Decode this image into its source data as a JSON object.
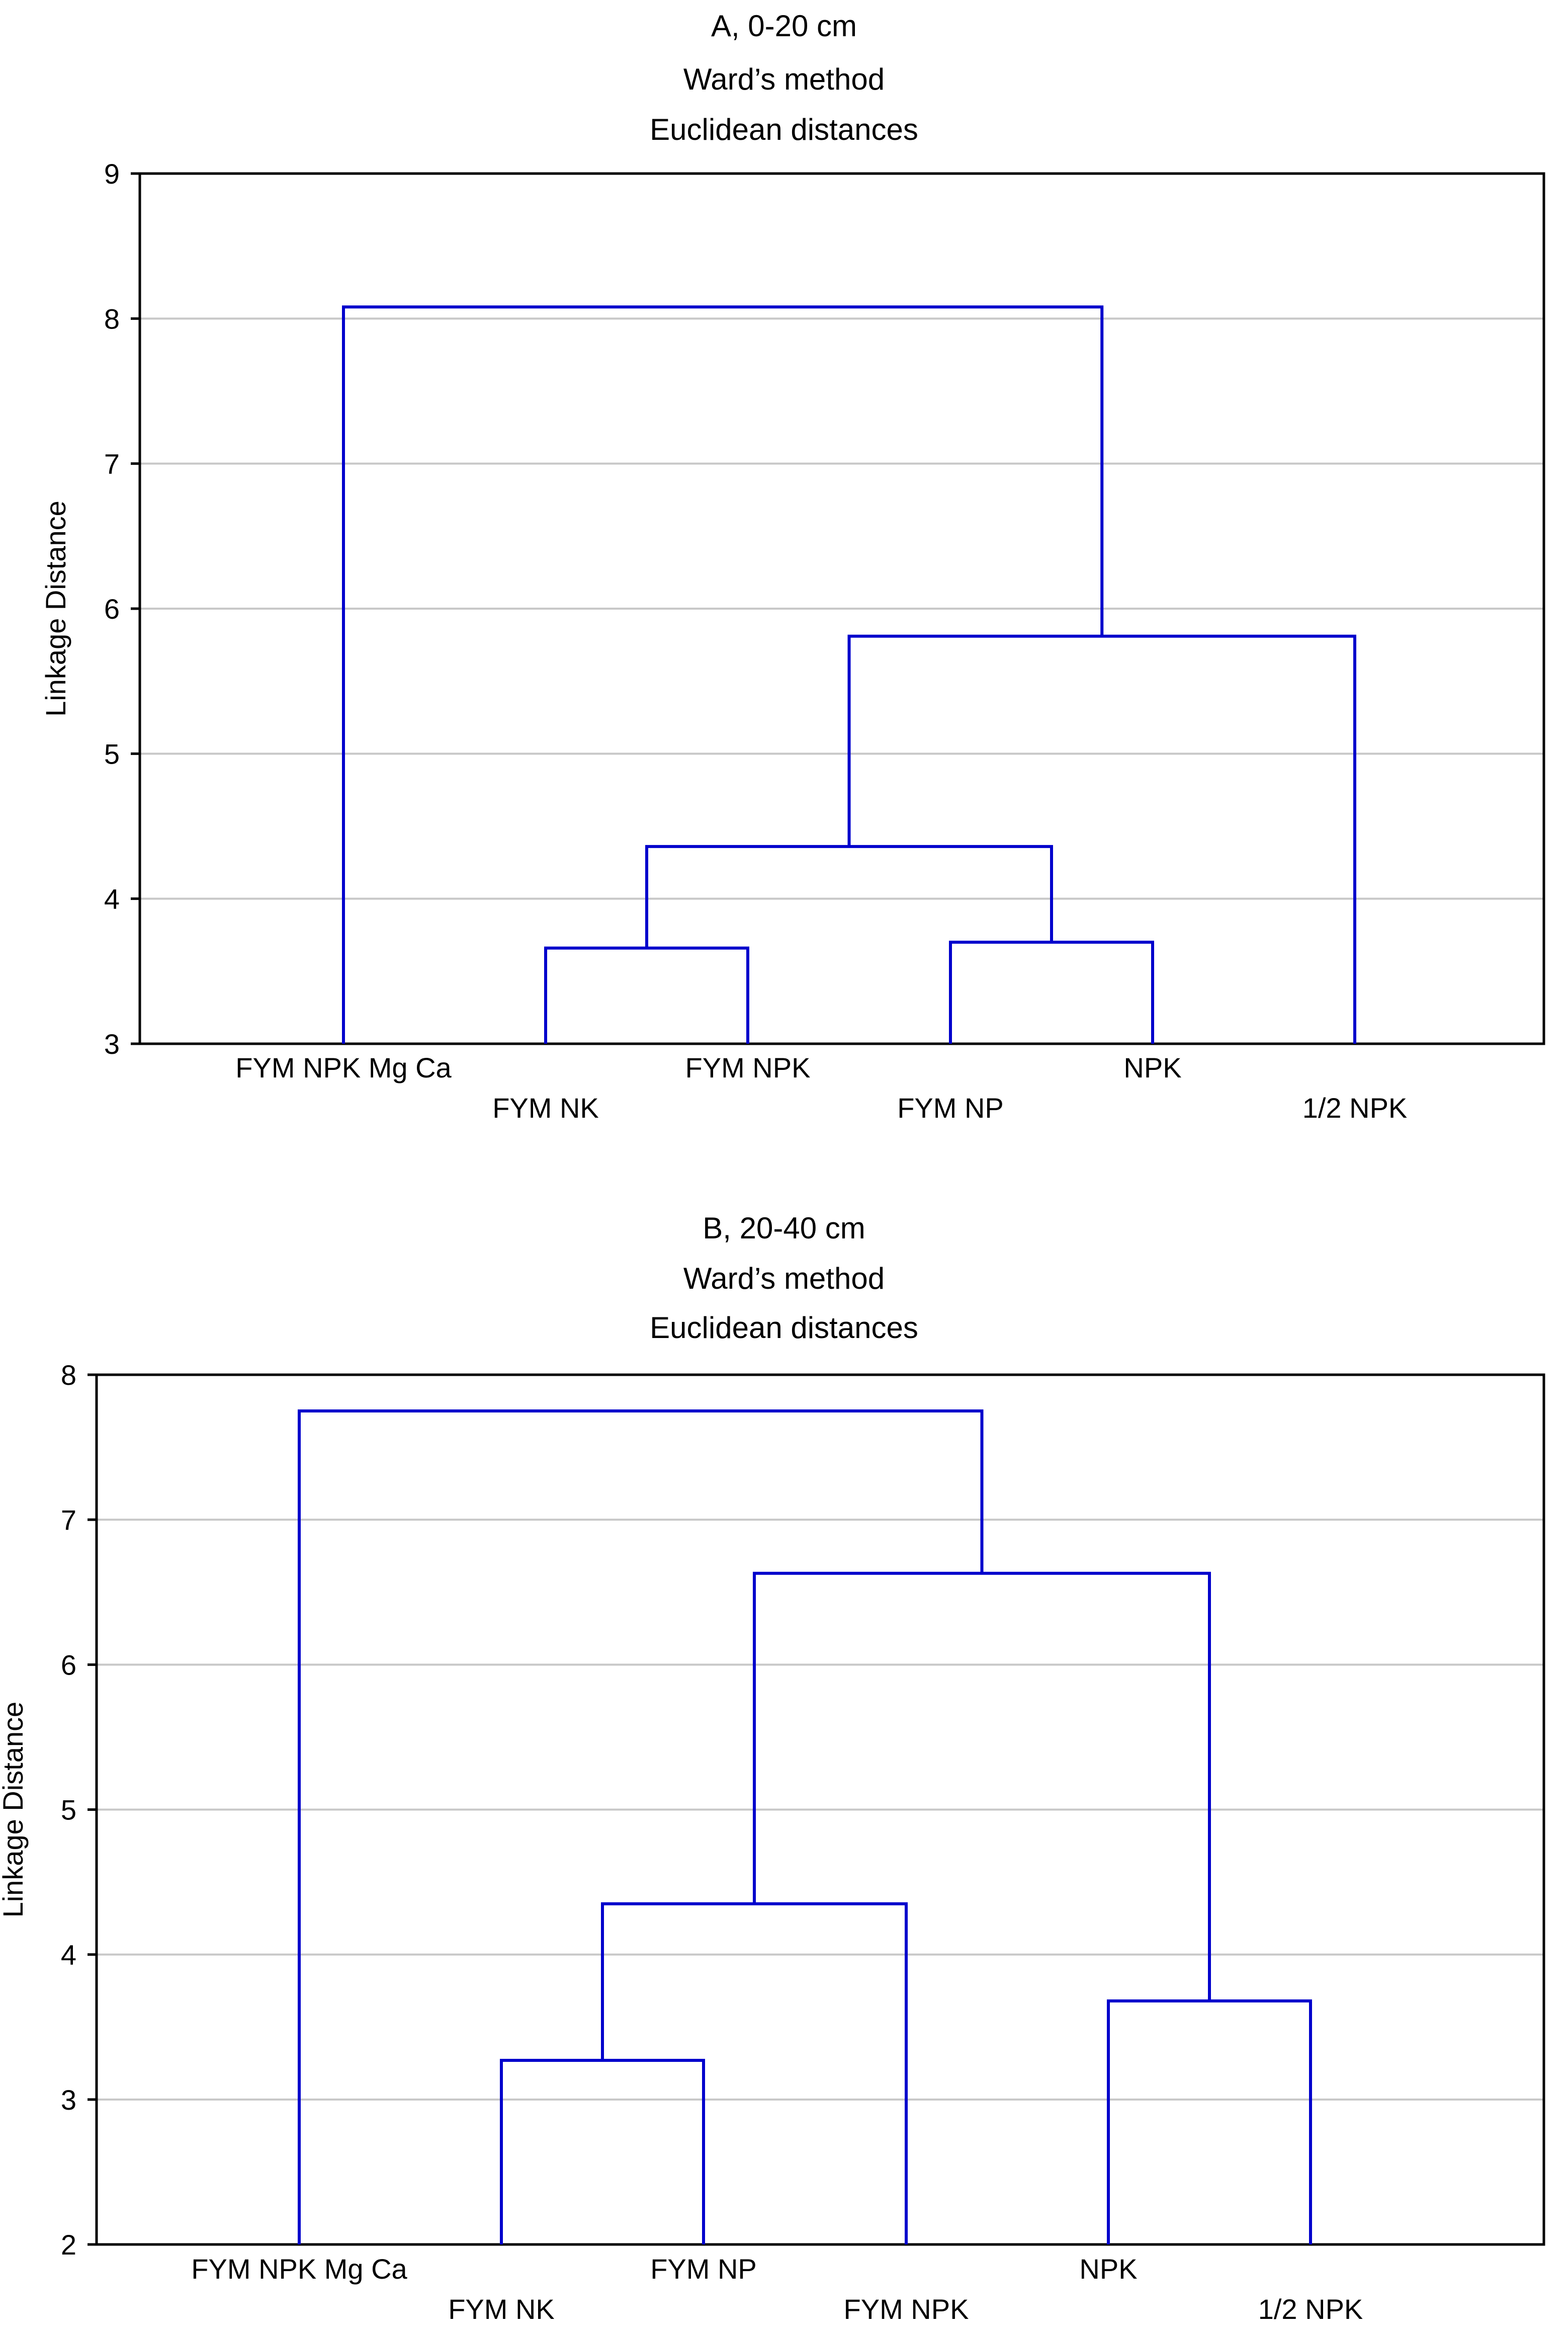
{
  "colors": {
    "link": "#0000CC",
    "grid": "#C8C8C8",
    "axis": "#000000"
  },
  "chart_data": [
    {
      "type": "dendrogram",
      "title": "A, 0-20 cm",
      "subtitle": "Ward’s method",
      "subtitle2": "Euclidean distances",
      "ylabel": "Linkage Distance",
      "ylim": [
        3,
        9
      ],
      "yticks": [
        3,
        4,
        5,
        6,
        7,
        8,
        9
      ],
      "grid": true,
      "leaves": [
        "FYM NPK Mg Ca",
        "FYM NK",
        "FYM NPK",
        "FYM NP",
        "NPK",
        "1/2 NPK"
      ],
      "merges": [
        {
          "a": "FYM NK",
          "b": "FYM NPK",
          "height": 3.66
        },
        {
          "a": "FYM NP",
          "b": "NPK",
          "height": 3.7
        },
        {
          "a": "FYM NK+FYM NPK",
          "b": "FYM NP+NPK",
          "height": 4.36
        },
        {
          "a": "FYM NK+FYM NPK+FYM NP+NPK",
          "b": "1/2 NPK",
          "height": 5.81
        },
        {
          "a": "FYM NPK Mg Ca",
          "b": "rest",
          "height": 8.08
        }
      ]
    },
    {
      "type": "dendrogram",
      "title": "B, 20-40 cm",
      "subtitle": "Ward’s method",
      "subtitle2": "Euclidean distances",
      "ylabel": "Linkage Distance",
      "ylim": [
        2,
        8
      ],
      "yticks": [
        2,
        3,
        4,
        5,
        6,
        7,
        8
      ],
      "grid": true,
      "leaves": [
        "FYM NPK Mg Ca",
        "FYM NK",
        "FYM NP",
        "FYM NPK",
        "NPK",
        "1/2 NPK"
      ],
      "merges": [
        {
          "a": "FYM NK",
          "b": "FYM NP",
          "height": 3.27
        },
        {
          "a": "NPK",
          "b": "1/2 NPK",
          "height": 3.68
        },
        {
          "a": "FYM NK+FYM NP",
          "b": "FYM NPK",
          "height": 4.35
        },
        {
          "a": "FYM NK+FYM NP+FYM NPK",
          "b": "NPK+1/2 NPK",
          "height": 6.63
        },
        {
          "a": "FYM NPK Mg Ca",
          "b": "rest",
          "height": 7.75
        }
      ]
    }
  ]
}
